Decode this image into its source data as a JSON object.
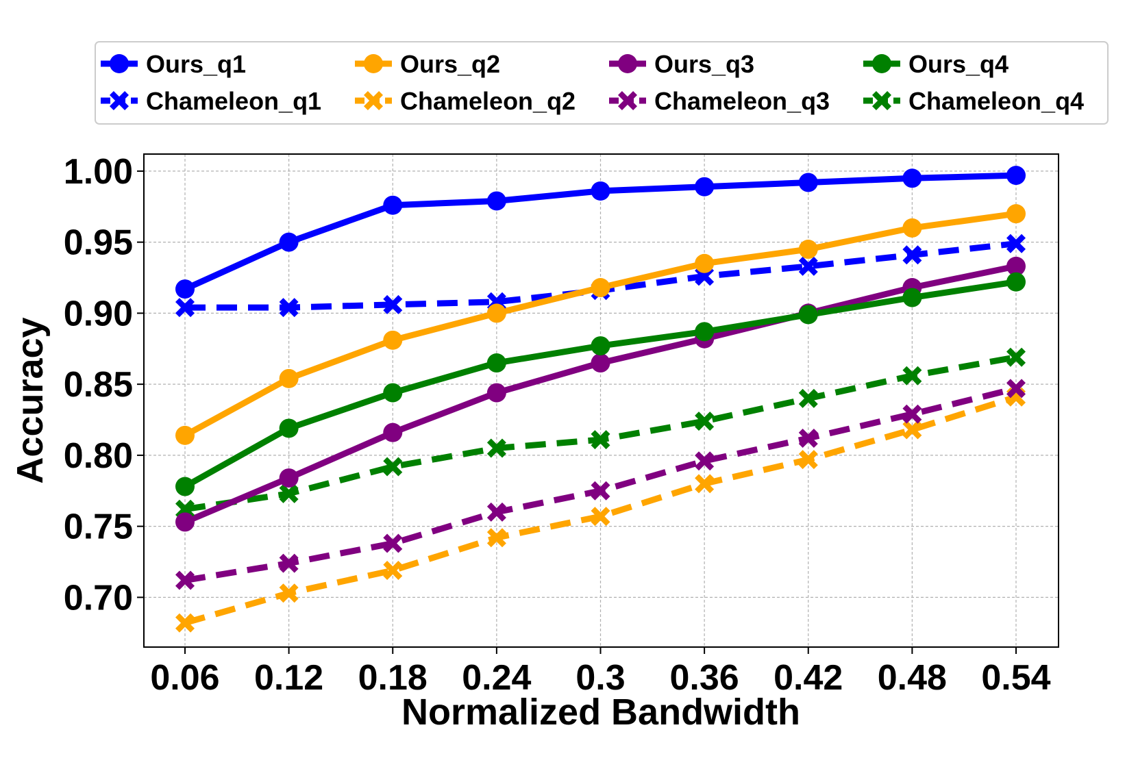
{
  "chart_data": {
    "type": "line",
    "title": "",
    "xlabel": "Normalized Bandwidth",
    "ylabel": "Accuracy",
    "categories": [
      "0.06",
      "0.12",
      "0.18",
      "0.24",
      "0.3",
      "0.36",
      "0.42",
      "0.48",
      "0.54"
    ],
    "ylim": [
      0.665,
      1.012
    ],
    "yticks": [
      0.7,
      0.75,
      0.8,
      0.85,
      0.9,
      0.95,
      1.0
    ],
    "ytick_labels": [
      "0.70",
      "0.75",
      "0.80",
      "0.85",
      "0.90",
      "0.95",
      "1.00"
    ],
    "grid": true,
    "legend_position": "top",
    "series": [
      {
        "name": "Ours_q1",
        "color": "#0000ff",
        "style": "solid",
        "marker": "circle",
        "values": [
          0.917,
          0.95,
          0.976,
          0.979,
          0.986,
          0.989,
          0.992,
          0.995,
          0.997
        ]
      },
      {
        "name": "Ours_q2",
        "color": "#ffa500",
        "style": "solid",
        "marker": "circle",
        "values": [
          0.814,
          0.854,
          0.881,
          0.9,
          0.918,
          0.935,
          0.945,
          0.96,
          0.97
        ]
      },
      {
        "name": "Ours_q3",
        "color": "#800080",
        "style": "solid",
        "marker": "circle",
        "values": [
          0.753,
          0.784,
          0.816,
          0.844,
          0.865,
          0.882,
          0.9,
          0.918,
          0.933
        ]
      },
      {
        "name": "Ours_q4",
        "color": "#008000",
        "style": "solid",
        "marker": "circle",
        "values": [
          0.778,
          0.819,
          0.844,
          0.865,
          0.877,
          0.887,
          0.899,
          0.911,
          0.922
        ]
      },
      {
        "name": "Chameleon_q1",
        "color": "#0000ff",
        "style": "dashed",
        "marker": "x",
        "values": [
          0.904,
          0.904,
          0.906,
          0.908,
          0.916,
          0.926,
          0.933,
          0.941,
          0.949
        ]
      },
      {
        "name": "Chameleon_q2",
        "color": "#ffa500",
        "style": "dashed",
        "marker": "x",
        "values": [
          0.682,
          0.703,
          0.719,
          0.742,
          0.757,
          0.78,
          0.797,
          0.818,
          0.841
        ]
      },
      {
        "name": "Chameleon_q3",
        "color": "#800080",
        "style": "dashed",
        "marker": "x",
        "values": [
          0.712,
          0.724,
          0.738,
          0.76,
          0.775,
          0.796,
          0.812,
          0.829,
          0.847
        ]
      },
      {
        "name": "Chameleon_q4",
        "color": "#008000",
        "style": "dashed",
        "marker": "x",
        "values": [
          0.762,
          0.773,
          0.792,
          0.805,
          0.811,
          0.824,
          0.84,
          0.856,
          0.869
        ]
      }
    ]
  }
}
